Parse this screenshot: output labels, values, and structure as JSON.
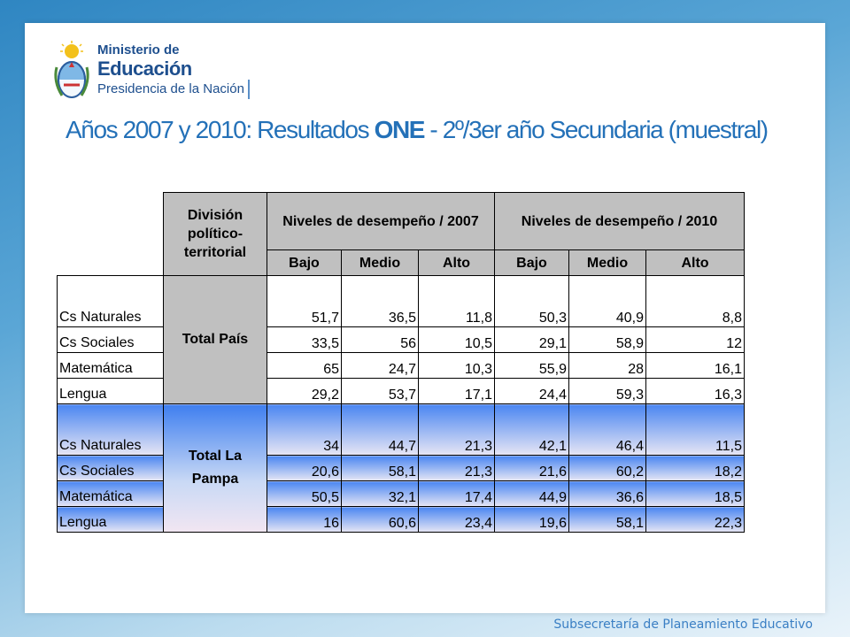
{
  "logo": {
    "line1": "Ministerio de",
    "line2": "Educación",
    "line3": "Presidencia de la Nación"
  },
  "title": {
    "part1": "Años 2007 y 2010: Resultados ",
    "bold": "ONE",
    "part2": "  - 2º/3er año Secundaria (muestral)"
  },
  "table": {
    "header_division": "División político-territorial",
    "header_2007": "Niveles de desempeño / 2007",
    "header_2010": "Niveles de desempeño / 2010",
    "sub_headers": [
      "Bajo",
      "Medio",
      "Alto",
      "Bajo",
      "Medio",
      "Alto"
    ],
    "groups": [
      {
        "name": "Total País",
        "rows": [
          {
            "subject": "Cs Naturales",
            "values": [
              "51,7",
              "36,5",
              "11,8",
              "50,3",
              "40,9",
              "8,8"
            ]
          },
          {
            "subject": "Cs Sociales",
            "values": [
              "33,5",
              "56",
              "10,5",
              "29,1",
              "58,9",
              "12"
            ]
          },
          {
            "subject": "Matemática",
            "values": [
              "65",
              "24,7",
              "10,3",
              "55,9",
              "28",
              "16,1"
            ]
          },
          {
            "subject": "Lengua",
            "values": [
              "29,2",
              "53,7",
              "17,1",
              "24,4",
              "59,3",
              "16,3"
            ]
          }
        ]
      },
      {
        "name": "Total La Pampa",
        "rows": [
          {
            "subject": "Cs Naturales",
            "values": [
              "34",
              "44,7",
              "21,3",
              "42,1",
              "46,4",
              "11,5"
            ]
          },
          {
            "subject": "Cs Sociales",
            "values": [
              "20,6",
              "58,1",
              "21,3",
              "21,6",
              "60,2",
              "18,2"
            ]
          },
          {
            "subject": "Matemática",
            "values": [
              "50,5",
              "32,1",
              "17,4",
              "44,9",
              "36,6",
              "18,5"
            ]
          },
          {
            "subject": "Lengua",
            "values": [
              "16",
              "60,6",
              "23,4",
              "19,6",
              "58,1",
              "22,3"
            ]
          }
        ]
      }
    ]
  },
  "footer": "Subsecretaría de Planeamiento Educativo",
  "colors": {
    "title": "#2471b8",
    "header_gray": "#c0c0c0",
    "pampa_blue": "#4a86f2"
  }
}
